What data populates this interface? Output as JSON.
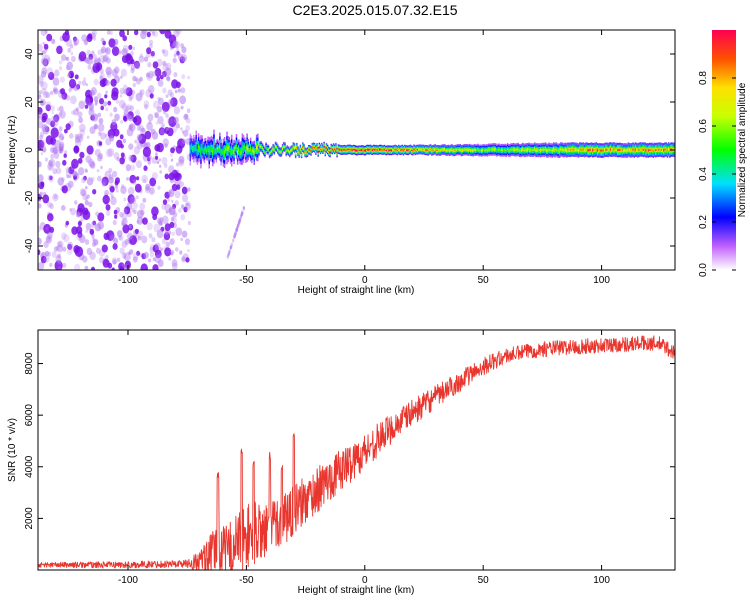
{
  "figure_title": "C2E3.2025.015.07.32.E15",
  "chart_data": [
    {
      "type": "heatmap",
      "name": "spectrogram",
      "title": "",
      "xlabel": "Height of straight line (km)",
      "ylabel": "Frequency (Hz)",
      "xlim": [
        -138,
        131
      ],
      "ylim": [
        -50,
        50
      ],
      "xticks": [
        -100,
        -50,
        0,
        50,
        100
      ],
      "xtick_labels": [
        "-100",
        "-50",
        "0",
        "50",
        "100"
      ],
      "yticks": [
        -40,
        -20,
        0,
        20,
        40
      ],
      "ytick_labels": [
        "-40",
        "-20",
        "0",
        "20",
        "40"
      ],
      "noise_region_x": [
        -138,
        -74
      ],
      "signal_line_frequency": 0,
      "signal_start_x": -74,
      "band_half_width": [
        [
          -74,
          4
        ],
        [
          -60,
          3
        ],
        [
          -40,
          2
        ],
        [
          -20,
          2
        ],
        [
          0,
          2
        ],
        [
          20,
          2
        ],
        [
          50,
          2.5
        ],
        [
          80,
          3
        ],
        [
          110,
          3
        ],
        [
          131,
          3
        ]
      ],
      "peak_amplitude": [
        [
          -74,
          0.45
        ],
        [
          -60,
          0.55
        ],
        [
          -45,
          0.6
        ],
        [
          -30,
          0.75
        ],
        [
          -20,
          0.92
        ],
        [
          0,
          0.95
        ],
        [
          20,
          0.88
        ],
        [
          50,
          0.6
        ],
        [
          80,
          0.7
        ],
        [
          95,
          0.85
        ],
        [
          110,
          0.8
        ],
        [
          131,
          0.88
        ]
      ],
      "streak": {
        "x": [
          -58,
          -51
        ],
        "y": [
          -45,
          -24
        ]
      }
    },
    {
      "type": "colorbar",
      "name": "colorbar",
      "label": "Normalized spectral amplitude",
      "range": [
        0,
        1
      ],
      "ticks": [
        0.0,
        0.2,
        0.4,
        0.6,
        0.8
      ],
      "tick_labels": [
        "0.0",
        "0.2",
        "0.4",
        "0.6",
        "0.8"
      ]
    },
    {
      "type": "line",
      "name": "snr",
      "title": "",
      "xlabel": "Height of straight line (km)",
      "ylabel": "SNR (10 * v/v)",
      "xlim": [
        -138,
        131
      ],
      "ylim": [
        0,
        9300
      ],
      "xticks": [
        -100,
        -50,
        0,
        50,
        100
      ],
      "xtick_labels": [
        "-100",
        "-50",
        "0",
        "50",
        "100"
      ],
      "yticks": [
        2000,
        4000,
        6000,
        8000
      ],
      "ytick_labels": [
        "2000",
        "4000",
        "6000",
        "8000"
      ],
      "color": "#e8352d",
      "trend": {
        "x": [
          -138,
          -100,
          -75,
          -70,
          -66,
          -62,
          -60,
          -55,
          -50,
          -45,
          -40,
          -35,
          -30,
          -25,
          -20,
          -15,
          -10,
          -5,
          0,
          5,
          10,
          20,
          30,
          40,
          50,
          60,
          70,
          80,
          90,
          100,
          110,
          120,
          125,
          131
        ],
        "y": [
          200,
          200,
          250,
          300,
          500,
          900,
          700,
          1000,
          1300,
          1500,
          1700,
          2000,
          2300,
          2700,
          3100,
          3500,
          3900,
          4200,
          4600,
          5000,
          5400,
          6100,
          6700,
          7300,
          7900,
          8300,
          8500,
          8600,
          8650,
          8700,
          8750,
          8800,
          8750,
          8400
        ]
      },
      "noise_amplitude": {
        "x": [
          -138,
          -75,
          -65,
          -50,
          -40,
          -30,
          -20,
          -10,
          0,
          20,
          40,
          60,
          131
        ],
        "y": [
          100,
          150,
          800,
          1300,
          1200,
          1000,
          900,
          800,
          700,
          500,
          400,
          300,
          300
        ]
      },
      "spikes": [
        {
          "x": -62,
          "y": 3800
        },
        {
          "x": -52,
          "y": 4800
        },
        {
          "x": -47,
          "y": 4300
        },
        {
          "x": -40,
          "y": 4600
        },
        {
          "x": -35,
          "y": 4100
        },
        {
          "x": -30,
          "y": 5300
        }
      ]
    }
  ]
}
